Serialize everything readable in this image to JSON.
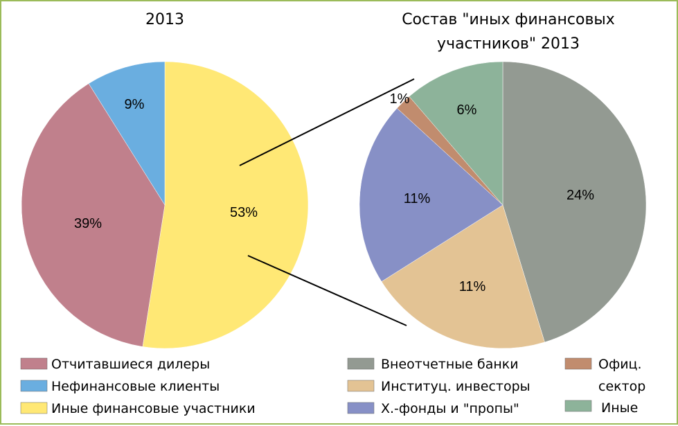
{
  "chart_data": [
    {
      "type": "pie",
      "title": "2013",
      "categories": [
        "Отчитавшиеся дилеры",
        "Нефинансовые клиенты",
        "Иные финансовые участники"
      ],
      "values": [
        39,
        9,
        53
      ],
      "labels": [
        "39%",
        "9%",
        "53%"
      ],
      "colors": [
        "#c0808c",
        "#6aaee0",
        "#ffe875"
      ],
      "legend_position": "bottom"
    },
    {
      "type": "pie",
      "title_lines": [
        "Состав \"иных финансовых",
        "участников\" 2013"
      ],
      "categories": [
        "Внеотчетные банки",
        "Институц. инвесторы",
        "Х.-фонды и \"пропы\"",
        "Офиц. сектор",
        "Иные"
      ],
      "values": [
        24,
        11,
        11,
        1,
        6
      ],
      "labels": [
        "24%",
        "11%",
        "11%",
        "1%",
        "6%"
      ],
      "colors": [
        "#939a92",
        "#e3c394",
        "#8790c6",
        "#c18c6e",
        "#8db39a"
      ],
      "legend_position": "bottom"
    }
  ],
  "legend_right_extra": {
    "ofits_line1": "Офиц.",
    "ofits_line2": "сектор"
  }
}
